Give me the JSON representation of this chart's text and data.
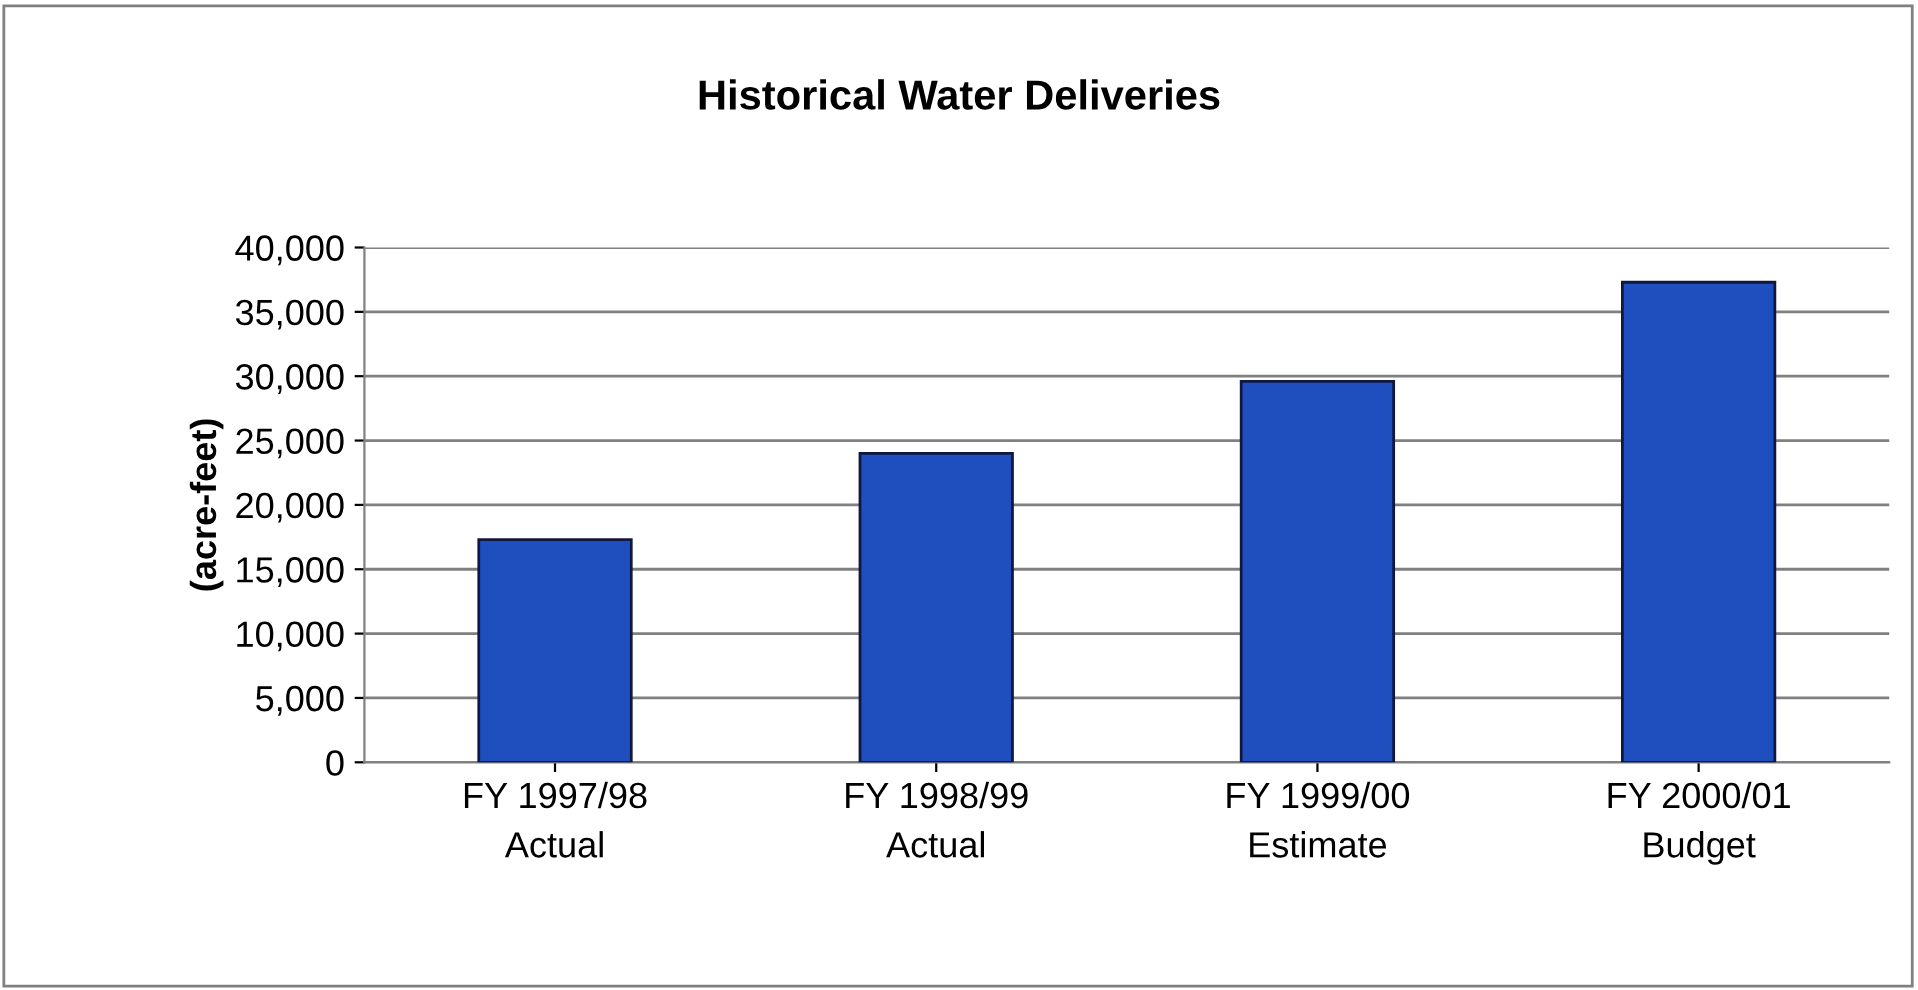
{
  "chart_data": {
    "type": "bar",
    "title": "Historical Water Deliveries",
    "ylabel": "(acre-feet)",
    "categories": [
      "FY 1997/98\nActual",
      "FY 1998/99\nActual",
      "FY 1999/00\nEstimate",
      "FY 2000/01\nBudget"
    ],
    "values": [
      17300,
      24000,
      29600,
      37300
    ],
    "color": "#1f4fbf",
    "ylim": [
      0,
      40000
    ],
    "yticks": [
      {
        "value": 0,
        "label": "0"
      },
      {
        "value": 5000,
        "label": "5,000"
      },
      {
        "value": 10000,
        "label": "10,000"
      },
      {
        "value": 15000,
        "label": "15,000"
      },
      {
        "value": 20000,
        "label": "20,000"
      },
      {
        "value": 25000,
        "label": "25,000"
      },
      {
        "value": 30000,
        "label": "30,000"
      },
      {
        "value": 35000,
        "label": "35,000"
      },
      {
        "value": 40000,
        "label": "40,000"
      }
    ],
    "grid": "y",
    "legend": false
  }
}
